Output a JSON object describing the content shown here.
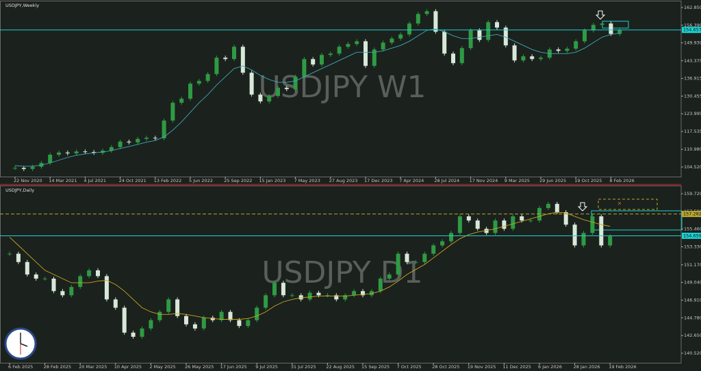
{
  "chart_data": [
    {
      "type": "candlestick",
      "title": "USDJPY,Weekly",
      "watermark": "USDJPY W1",
      "categories": [
        "22 Nov 2020",
        null,
        null,
        null,
        "14 Mar 2021",
        null,
        null,
        null,
        "4 Jul 2021",
        null,
        null,
        null,
        "24 Oct 2021",
        null,
        null,
        null,
        "13 Feb 2022",
        null,
        null,
        null,
        "5 Jun 2022",
        null,
        null,
        null,
        "25 Sep 2022",
        null,
        null,
        null,
        "15 Jan 2023",
        null,
        null,
        null,
        "7 May 2023",
        null,
        null,
        null,
        "27 Aug 2023",
        null,
        null,
        null,
        "17 Dec 2023",
        null,
        null,
        null,
        "7 Apr 2024",
        null,
        null,
        null,
        "28 Jul 2024",
        null,
        null,
        null,
        "17 Nov 2024",
        null,
        null,
        null,
        "9 Mar 2025",
        null,
        null,
        null,
        "29 Jun 2025",
        null,
        null,
        null,
        "19 Oct 2025",
        null,
        null,
        null,
        "8 Feb 2026",
        null
      ],
      "values": [
        104.2,
        103.8,
        104.6,
        106.0,
        109.0,
        109.8,
        109.5,
        110.2,
        110.0,
        109.7,
        110.5,
        111.8,
        113.8,
        113.5,
        114.8,
        115.2,
        115.0,
        121.5,
        128.0,
        129.5,
        135.0,
        136.0,
        138.5,
        144.5,
        144.0,
        148.5,
        139.0,
        131.0,
        128.5,
        130.5,
        133.5,
        133.0,
        137.5,
        144.0,
        142.0,
        145.5,
        146.0,
        148.5,
        149.5,
        150.5,
        141.5,
        147.5,
        150.0,
        151.5,
        153.0,
        157.0,
        160.5,
        161.5,
        154.0,
        146.0,
        142.5,
        148.0,
        154.5,
        151.0,
        157.5,
        155.5,
        149.0,
        143.5,
        145.0,
        144.0,
        144.5,
        147.5,
        147.0,
        147.8,
        150.5,
        154.5,
        156.5,
        157.0,
        153.2,
        154.6
      ],
      "ma": {
        "color": "#3fa9b8",
        "values": [
          105.0,
          104.8,
          104.8,
          105.2,
          106,
          107,
          108,
          108.8,
          109.3,
          109.7,
          110,
          110.5,
          111.3,
          112,
          112.8,
          113.6,
          114.2,
          115.5,
          118,
          121,
          124.5,
          128,
          131,
          134.5,
          137.5,
          140.5,
          141.5,
          140,
          138,
          136.5,
          135.5,
          135.5,
          136,
          137.5,
          139,
          140.5,
          142,
          143.5,
          145,
          146.5,
          146.5,
          146.5,
          147,
          148,
          149,
          150.5,
          152.5,
          154.5,
          155,
          154,
          152.5,
          151.5,
          151.5,
          152,
          152.5,
          153,
          152,
          150.5,
          149,
          147.5,
          146.5,
          146,
          146,
          146,
          146.5,
          148,
          150,
          152,
          153,
          153.5
        ]
      },
      "up_color": "#2f9a44",
      "down_color": "#d8e8d8",
      "ylim": [
        101.0,
        165.1
      ],
      "yticks": [
        {
          "value": 162.85,
          "label": "162.850"
        },
        {
          "value": 156.39,
          "label": "156.390"
        },
        143.375,
        {
          "value": 149.93,
          "label": "149.930"
        },
        136.915,
        130.455,
        123.995,
        117.535,
        {
          "value": 110.98,
          "label": "110.980"
        },
        {
          "value": 104.52,
          "label": "104.520"
        }
      ],
      "levels": [
        {
          "value": 154.657,
          "color": "#19d3d3",
          "dashed": false
        }
      ]
    },
    {
      "type": "candlestick",
      "title": "USDJPY,Daily",
      "watermark": "USDJPY D1",
      "categories": [
        "6 Feb 2025",
        null,
        null,
        null,
        "28 Feb 2025",
        null,
        null,
        null,
        "20 Mar 2025",
        null,
        null,
        null,
        "10 Apr 2025",
        null,
        null,
        null,
        "2 May 2025",
        null,
        null,
        null,
        "26 May 2025",
        null,
        null,
        null,
        "17 Jun 2025",
        null,
        null,
        null,
        "9 Jul 2025",
        null,
        null,
        null,
        "31 Jul 2025",
        null,
        null,
        null,
        "22 Aug 2025",
        null,
        null,
        null,
        "15 Sep 2025",
        null,
        null,
        null,
        "7 Oct 2025",
        null,
        null,
        null,
        "28 Oct 2025",
        null,
        null,
        null,
        "19 Nov 2025",
        null,
        null,
        null,
        "11 Dec 2025",
        null,
        null,
        null,
        "6 Jan 2026",
        null,
        null,
        null,
        "28 Jan 2026",
        null,
        null,
        null,
        "19 Feb 2026"
      ],
      "values": [
        152.5,
        151.5,
        150.0,
        149.5,
        149.5,
        148.0,
        147.5,
        148.5,
        149.8,
        150.5,
        149.8,
        147.0,
        146.0,
        143.0,
        142.5,
        143.5,
        144.5,
        145.5,
        147.0,
        145.0,
        144.0,
        143.5,
        144.8,
        144.5,
        145.5,
        144.5,
        143.8,
        144.5,
        146.0,
        147.5,
        149.0,
        147.5,
        147.5,
        147.0,
        147.8,
        147.5,
        147.5,
        147.0,
        147.5,
        148.0,
        147.5,
        148.0,
        149.5,
        150.0,
        152.5,
        151.5,
        151.5,
        152.5,
        153.5,
        154.0,
        155.0,
        157.0,
        156.5,
        155.5,
        155.0,
        156.5,
        155.5,
        157.0,
        156.5,
        156.5,
        158.0,
        158.5,
        157.5,
        156.0,
        153.5,
        155.0,
        157.0,
        153.5,
        154.6
      ],
      "ma": {
        "color": "#c9a81e",
        "values": [
          154.5,
          153.5,
          152.5,
          151.5,
          150.5,
          150,
          149.5,
          149,
          149,
          149,
          149.2,
          149.3,
          148.8,
          148,
          147,
          146,
          145.5,
          145.2,
          145.2,
          145.3,
          145.2,
          145,
          144.8,
          144.7,
          144.6,
          144.6,
          144.6,
          144.7,
          145,
          145.5,
          146.2,
          146.7,
          147,
          147.2,
          147.3,
          147.4,
          147.4,
          147.4,
          147.4,
          147.5,
          147.6,
          147.7,
          148,
          148.5,
          149.2,
          150,
          150.6,
          151.2,
          152,
          152.8,
          153.6,
          154.3,
          154.8,
          155.1,
          155.3,
          155.5,
          155.8,
          156.1,
          156.4,
          156.7,
          157,
          157.3,
          157.5,
          157.4,
          157,
          156.6,
          156.3,
          156,
          155.8
        ]
      },
      "up_color": "#2f9a44",
      "down_color": "#d8e8d8",
      "ylim": [
        139.37,
        160.63
      ],
      "yticks": [
        {
          "value": 159.72,
          "label": "159.720"
        },
        {
          "value": 157.59,
          "label": "157.590"
        },
        {
          "value": 155.46,
          "label": "155.460"
        },
        {
          "value": 153.33,
          "label": "153.330"
        },
        {
          "value": 151.17,
          "label": "151.170"
        },
        {
          "value": 149.04,
          "label": "149.040"
        },
        {
          "value": 146.91,
          "label": "146.910"
        },
        {
          "value": 144.78,
          "label": "144.780"
        },
        {
          "value": 142.65,
          "label": "142.650"
        },
        {
          "value": 140.52,
          "label": "140.520"
        }
      ],
      "levels": [
        {
          "value": 157.282,
          "color": "#b8a830",
          "dashed": true
        },
        {
          "value": 154.659,
          "color": "#19d3d3",
          "dashed": false
        }
      ]
    }
  ]
}
